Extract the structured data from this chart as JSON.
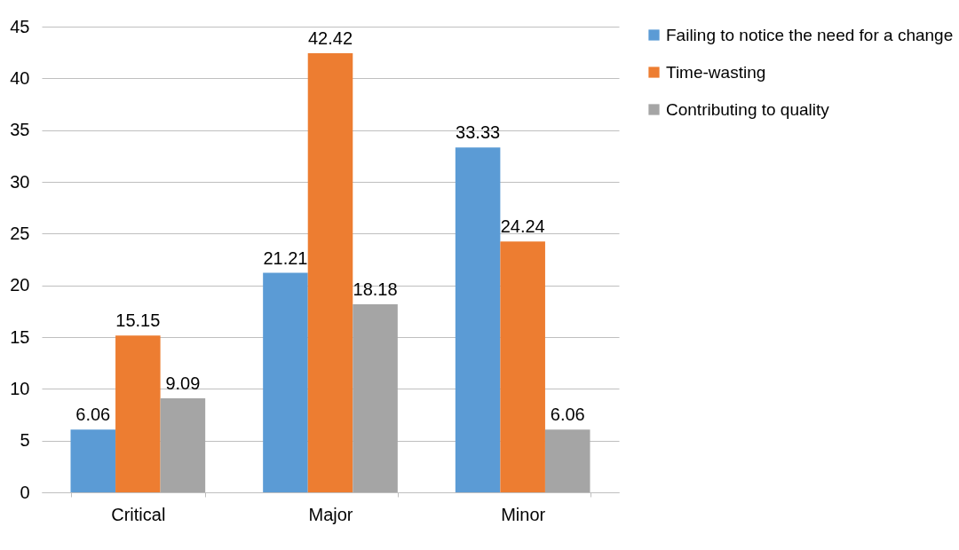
{
  "chart_data": {
    "type": "bar",
    "categories": [
      "Critical",
      "Major",
      "Minor"
    ],
    "series": [
      {
        "name": "Failing to notice the need for a change",
        "color": "#5b9bd5",
        "values": [
          6.06,
          21.21,
          33.33
        ]
      },
      {
        "name": "Time-wasting",
        "color": "#ed7d31",
        "values": [
          15.15,
          42.42,
          24.24
        ]
      },
      {
        "name": "Contributing to quality",
        "color": "#a5a5a5",
        "values": [
          9.09,
          18.18,
          6.06
        ]
      }
    ],
    "ylim": [
      0,
      45
    ],
    "yticks": [
      0,
      5,
      10,
      15,
      20,
      25,
      30,
      35,
      40,
      45
    ],
    "grid": "y",
    "legend": "right",
    "data_labels": true
  }
}
